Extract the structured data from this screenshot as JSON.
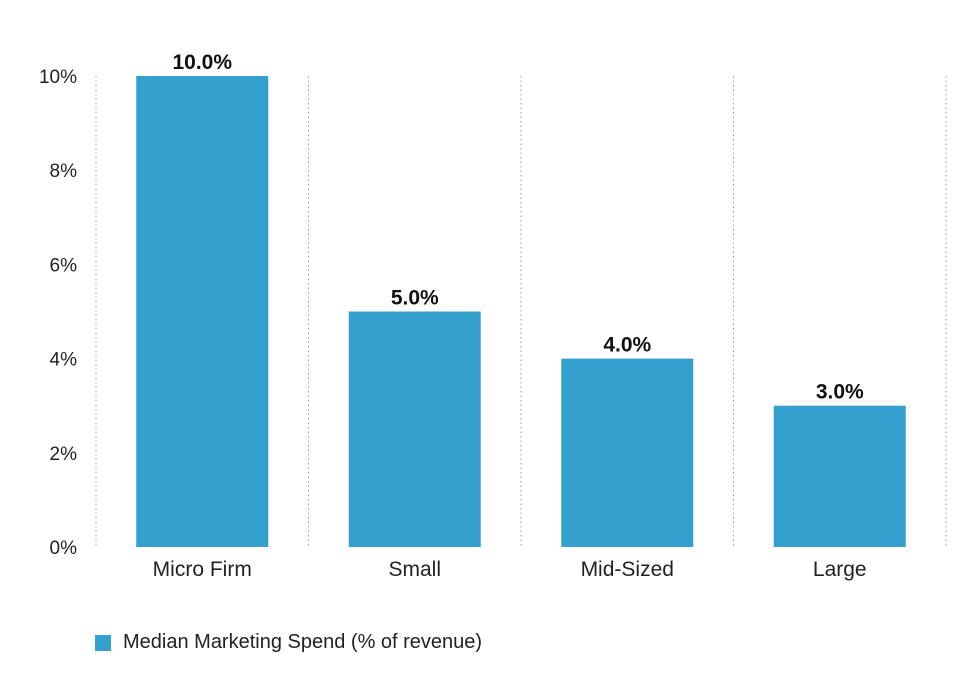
{
  "chart_data": {
    "type": "bar",
    "categories": [
      "Micro Firm",
      "Small",
      "Mid-Sized",
      "Large"
    ],
    "series": [
      {
        "name": "Median Marketing Spend (% of revenue)",
        "values": [
          10.0,
          5.0,
          4.0,
          3.0
        ]
      }
    ],
    "data_labels": [
      "10.0%",
      "5.0%",
      "4.0%",
      "3.0%"
    ],
    "y_ticks": [
      "0%",
      "2%",
      "4%",
      "6%",
      "8%",
      "10%"
    ],
    "ylim": [
      0,
      10
    ],
    "grid": "vertical dotted separators",
    "legend_position": "bottom-left",
    "bar_color": "#33a0cd"
  }
}
